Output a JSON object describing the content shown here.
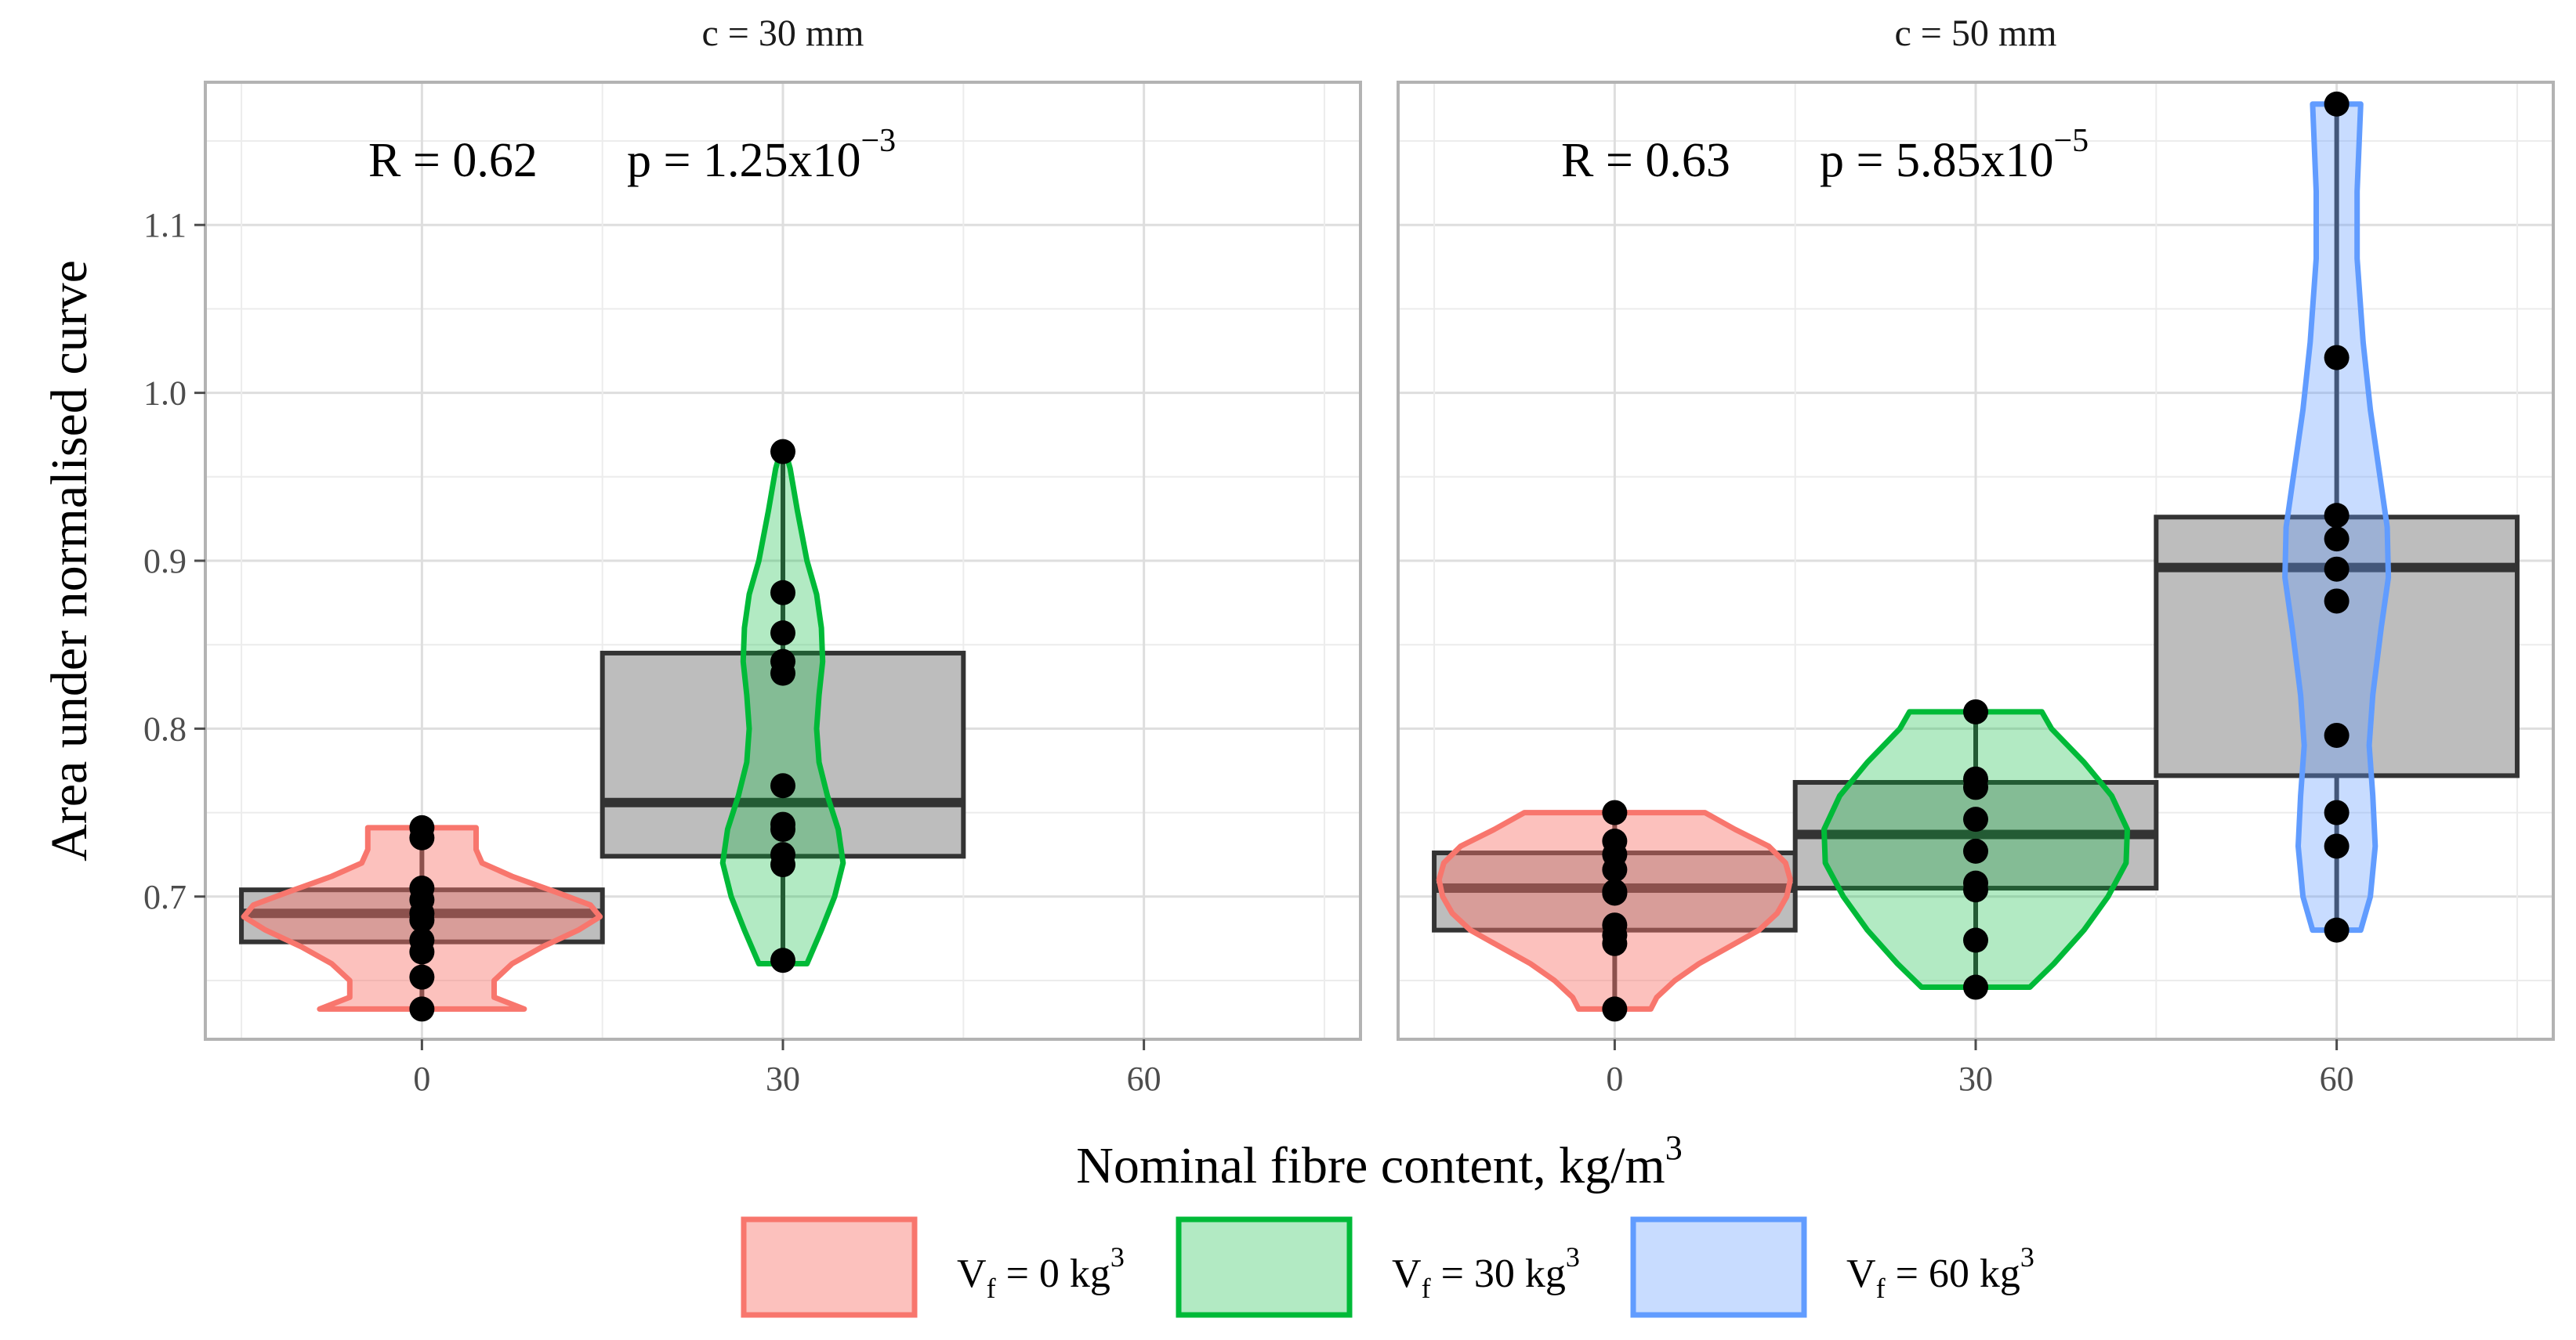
{
  "chart_data": {
    "type": "violin-box",
    "xlabel": "Nominal fibre content, kg/m",
    "xlabel_sup": "3",
    "ylabel": "Area under normalised curve",
    "ylim": [
      0.615,
      1.185
    ],
    "yticks": [
      0.7,
      0.8,
      0.9,
      1.0,
      1.1
    ],
    "ytick_labels": [
      "0.7",
      "0.8",
      "0.9",
      "1.0",
      "1.1"
    ],
    "xticks": [
      0,
      30,
      60
    ],
    "xtick_labels": [
      "0",
      "30",
      "60"
    ],
    "xlim": [
      -18,
      78
    ],
    "legend": {
      "position": "bottom",
      "items": [
        {
          "prefix": "V",
          "sub": "f",
          "text": " = 0 kg",
          "sup": "3",
          "fill": "#F8766D",
          "fill_opacity": 0.45
        },
        {
          "prefix": "V",
          "sub": "f",
          "text": " = 30 kg",
          "sup": "3",
          "fill": "#00BA38",
          "fill_opacity": 0.3
        },
        {
          "prefix": "V",
          "sub": "f",
          "text": " = 60 kg",
          "sup": "3",
          "fill": "#619CFF",
          "fill_opacity": 0.35
        }
      ]
    },
    "panels": [
      {
        "title": "c = 30 mm",
        "stat_R": "R = 0.62",
        "stat_p_base": "p = 1.25x10",
        "stat_p_exp": "−3",
        "groups": [
          {
            "x": 0,
            "color": "#F8766D",
            "points": [
              0.741,
              0.735,
              0.705,
              0.698,
              0.69,
              0.686,
              0.674,
              0.667,
              0.652,
              0.633
            ],
            "box": {
              "q1": 0.673,
              "median": 0.69,
              "q3": 0.704,
              "min": 0.633,
              "max": 0.741
            },
            "violin": [
              [
                0.633,
                8.5
              ],
              [
                0.64,
                6.0
              ],
              [
                0.65,
                6.0
              ],
              [
                0.66,
                7.5
              ],
              [
                0.67,
                10.0
              ],
              [
                0.68,
                13.0
              ],
              [
                0.688,
                14.8
              ],
              [
                0.695,
                14.0
              ],
              [
                0.703,
                11.0
              ],
              [
                0.712,
                7.5
              ],
              [
                0.72,
                5.0
              ],
              [
                0.728,
                4.5
              ],
              [
                0.735,
                4.5
              ],
              [
                0.741,
                4.5
              ]
            ]
          },
          {
            "x": 30,
            "color": "#00BA38",
            "points": [
              0.965,
              0.881,
              0.857,
              0.84,
              0.833,
              0.766,
              0.743,
              0.74,
              0.725,
              0.719,
              0.662
            ],
            "box": {
              "q1": 0.724,
              "median": 0.756,
              "q3": 0.845,
              "min": 0.662,
              "max": 0.965
            },
            "violin": [
              [
                0.66,
                2.0
              ],
              [
                0.68,
                3.2
              ],
              [
                0.7,
                4.3
              ],
              [
                0.72,
                5.0
              ],
              [
                0.74,
                4.6
              ],
              [
                0.76,
                3.7
              ],
              [
                0.78,
                3.0
              ],
              [
                0.8,
                2.8
              ],
              [
                0.82,
                3.0
              ],
              [
                0.84,
                3.3
              ],
              [
                0.86,
                3.2
              ],
              [
                0.88,
                2.8
              ],
              [
                0.9,
                2.0
              ],
              [
                0.93,
                1.2
              ],
              [
                0.955,
                0.6
              ],
              [
                0.965,
                0.2
              ]
            ]
          }
        ]
      },
      {
        "title": "c = 50 mm",
        "stat_R": "R = 0.63",
        "stat_p_base": "p = 5.85x10",
        "stat_p_exp": "−5",
        "groups": [
          {
            "x": 0,
            "color": "#F8766D",
            "points": [
              0.75,
              0.733,
              0.725,
              0.716,
              0.703,
              0.702,
              0.683,
              0.677,
              0.672,
              0.633
            ],
            "box": {
              "q1": 0.68,
              "median": 0.705,
              "q3": 0.726,
              "min": 0.633,
              "max": 0.75
            },
            "violin": [
              [
                0.633,
                3.0
              ],
              [
                0.64,
                3.5
              ],
              [
                0.65,
                5.0
              ],
              [
                0.66,
                7.0
              ],
              [
                0.67,
                9.5
              ],
              [
                0.68,
                12.0
              ],
              [
                0.69,
                13.5
              ],
              [
                0.7,
                14.3
              ],
              [
                0.71,
                14.6
              ],
              [
                0.72,
                14.2
              ],
              [
                0.73,
                12.8
              ],
              [
                0.74,
                10.0
              ],
              [
                0.75,
                7.5
              ]
            ]
          },
          {
            "x": 30,
            "color": "#00BA38",
            "points": [
              0.81,
              0.77,
              0.765,
              0.746,
              0.727,
              0.708,
              0.704,
              0.674,
              0.646
            ],
            "box": {
              "q1": 0.705,
              "median": 0.737,
              "q3": 0.768,
              "min": 0.646,
              "max": 0.81
            },
            "violin": [
              [
                0.646,
                4.5
              ],
              [
                0.66,
                6.5
              ],
              [
                0.68,
                9.0
              ],
              [
                0.7,
                11.0
              ],
              [
                0.72,
                12.5
              ],
              [
                0.74,
                12.6
              ],
              [
                0.76,
                11.3
              ],
              [
                0.78,
                9.0
              ],
              [
                0.8,
                6.3
              ],
              [
                0.81,
                5.5
              ]
            ]
          },
          {
            "x": 60,
            "color": "#619CFF",
            "points": [
              1.172,
              1.021,
              0.927,
              0.913,
              0.895,
              0.876,
              0.796,
              0.75,
              0.73,
              0.68
            ],
            "box": {
              "q1": 0.772,
              "median": 0.896,
              "q3": 0.926,
              "min": 0.68,
              "max": 1.172
            },
            "violin": [
              [
                0.68,
                2.0
              ],
              [
                0.7,
                2.8
              ],
              [
                0.73,
                3.2
              ],
              [
                0.76,
                3.0
              ],
              [
                0.79,
                2.7
              ],
              [
                0.82,
                3.0
              ],
              [
                0.86,
                3.7
              ],
              [
                0.89,
                4.3
              ],
              [
                0.92,
                4.2
              ],
              [
                0.95,
                3.6
              ],
              [
                0.99,
                2.8
              ],
              [
                1.03,
                2.2
              ],
              [
                1.08,
                1.7
              ],
              [
                1.12,
                1.7
              ],
              [
                1.172,
                2.0
              ]
            ]
          }
        ]
      }
    ]
  }
}
